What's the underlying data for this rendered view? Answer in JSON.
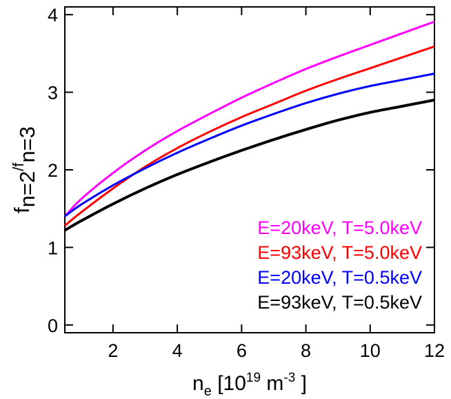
{
  "chart_data": {
    "type": "line",
    "xlabel": {
      "base": "n",
      "sub": "e",
      "unit_pre": " [10",
      "unit_exp": "19",
      "unit_mid": " m",
      "unit_exp2": "-3",
      "unit_post": " ]"
    },
    "ylabel": {
      "f1": "f",
      "sub1": "n=2",
      "slash": "/",
      "f2": "f",
      "sub2": "n=3"
    },
    "xlim": [
      0.5,
      12
    ],
    "ylim": [
      -0.1,
      4.1
    ],
    "xticks": [
      2,
      4,
      6,
      8,
      10,
      12
    ],
    "yticks": [
      0,
      1,
      2,
      3,
      4
    ],
    "grid": false,
    "legend_position": "bottom-right",
    "x": [
      0.5,
      1,
      2,
      3,
      4,
      5,
      6,
      7,
      8,
      9,
      10,
      11,
      12
    ],
    "series": [
      {
        "name": "E=20keV, T=5.0keV",
        "color": "#ff00ff",
        "values": [
          1.4,
          1.62,
          1.96,
          2.25,
          2.5,
          2.72,
          2.93,
          3.12,
          3.3,
          3.46,
          3.61,
          3.76,
          3.91
        ]
      },
      {
        "name": "E=93keV, T=5.0keV",
        "color": "#ff0000",
        "values": [
          1.28,
          1.45,
          1.76,
          2.04,
          2.28,
          2.49,
          2.68,
          2.85,
          3.02,
          3.17,
          3.31,
          3.45,
          3.59
        ]
      },
      {
        "name": "E=20keV, T=0.5keV",
        "color": "#0000ff",
        "values": [
          1.4,
          1.55,
          1.8,
          2.02,
          2.22,
          2.4,
          2.57,
          2.72,
          2.86,
          2.98,
          3.08,
          3.16,
          3.24
        ]
      },
      {
        "name": "E=93keV, T=0.5keV",
        "color": "#000000",
        "values": [
          1.22,
          1.34,
          1.56,
          1.76,
          1.94,
          2.1,
          2.25,
          2.39,
          2.52,
          2.64,
          2.74,
          2.82,
          2.9
        ]
      }
    ]
  }
}
